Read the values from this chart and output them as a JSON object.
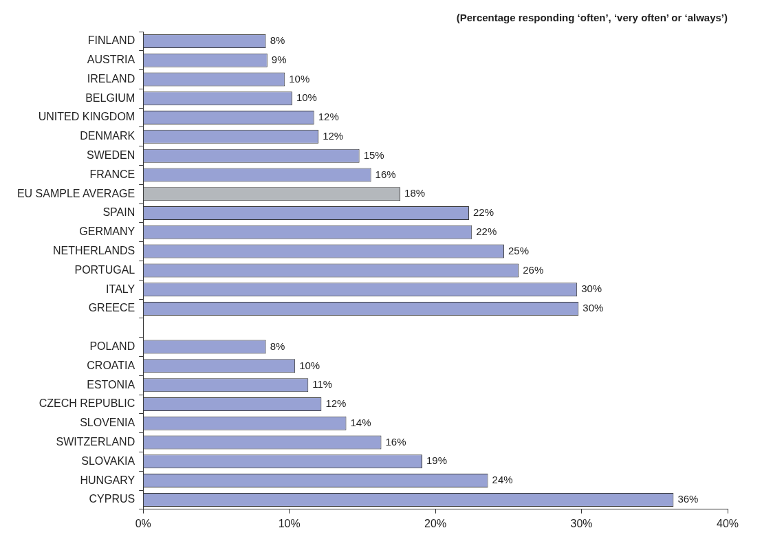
{
  "chart_data": {
    "type": "bar",
    "orientation": "horizontal",
    "title": "(Percentage responding ‘often’, ‘very often’ or ‘always’)",
    "categories": [
      "FINLAND",
      "AUSTRIA",
      "IRELAND",
      "BELGIUM",
      "UNITED KINGDOM",
      "DENMARK",
      "SWEDEN",
      "FRANCE",
      "EU SAMPLE AVERAGE",
      "SPAIN",
      "GERMANY",
      "NETHERLANDS",
      "PORTUGAL",
      "ITALY",
      "GREECE",
      null,
      "POLAND",
      "CROATIA",
      "ESTONIA",
      "CZECH REPUBLIC",
      "SLOVENIA",
      "SWITZERLAND",
      "SLOVAKIA",
      "HUNGARY",
      "CYPRUS"
    ],
    "values": [
      8.4,
      8.5,
      9.7,
      10.2,
      11.7,
      12,
      14.8,
      15.6,
      17.6,
      22.3,
      22.5,
      24.7,
      25.7,
      29.7,
      29.8,
      null,
      8.4,
      10.4,
      11.3,
      12.2,
      13.9,
      16.3,
      19.1,
      23.6,
      36.3
    ],
    "value_labels": [
      "8%",
      "9%",
      "10%",
      "10%",
      "12%",
      "12%",
      "15%",
      "16%",
      "18%",
      "22%",
      "22%",
      "25%",
      "26%",
      "30%",
      "30%",
      null,
      "8%",
      "10%",
      "11%",
      "12%",
      "14%",
      "16%",
      "19%",
      "24%",
      "36%"
    ],
    "colors": [
      "#98a2d4",
      "#98a2d4",
      "#98a2d4",
      "#98a2d4",
      "#98a2d4",
      "#98a2d4",
      "#98a2d4",
      "#98a2d4",
      "#b4b8bc",
      "#98a2d4",
      "#98a2d4",
      "#98a2d4",
      "#98a2d4",
      "#98a2d4",
      "#98a2d4",
      "#98a2d4",
      "#98a2d4",
      "#98a2d4",
      "#98a2d4",
      "#98a2d4",
      "#98a2d4",
      "#98a2d4",
      "#98a2d4",
      "#98a2d4",
      "#98a2d4"
    ],
    "xlim": [
      0,
      40
    ],
    "xticks": [
      {
        "value": 0,
        "label": "0%"
      },
      {
        "value": 10,
        "label": "10%"
      },
      {
        "value": 20,
        "label": "20%"
      },
      {
        "value": 30,
        "label": "30%"
      },
      {
        "value": 40,
        "label": "40%"
      }
    ],
    "grid": false,
    "legend": false
  }
}
